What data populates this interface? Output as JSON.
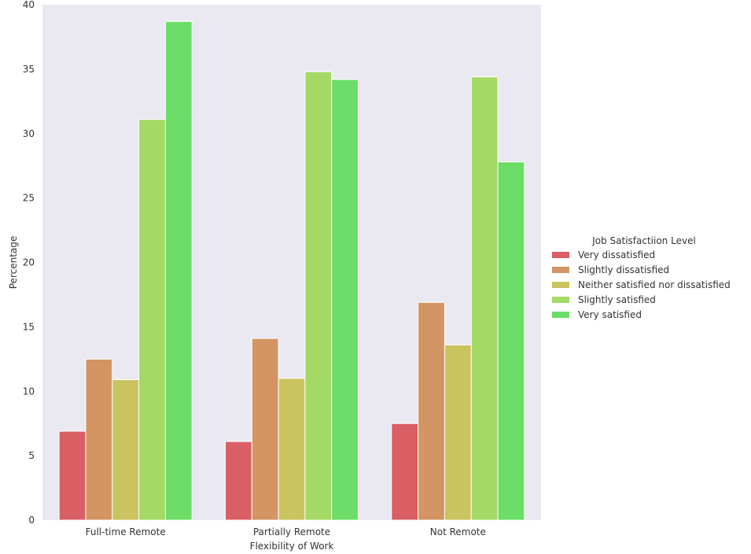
{
  "chart_data": {
    "type": "bar",
    "title": "",
    "xlabel": "Flexibility of Work",
    "ylabel": "Percentage",
    "ylim": [
      0,
      40
    ],
    "yticks": [
      0,
      5,
      10,
      15,
      20,
      25,
      30,
      35,
      40
    ],
    "grid": false,
    "categories": [
      "Full-time Remote",
      "Partially Remote",
      "Not Remote"
    ],
    "legend": {
      "title": "Job Satisfactiion Level",
      "placement": "right"
    },
    "series": [
      {
        "name": "Very dissatisfied",
        "color": "#d95f65",
        "values": [
          6.9,
          6.1,
          7.5
        ]
      },
      {
        "name": "Slightly dissatisfied",
        "color": "#d29563",
        "values": [
          12.5,
          14.1,
          16.9
        ]
      },
      {
        "name": "Neither satisfied nor dissatisfied",
        "color": "#c9c45f",
        "values": [
          10.9,
          11.0,
          13.6
        ]
      },
      {
        "name": "Slightly satisfied",
        "color": "#a4d965",
        "values": [
          31.1,
          34.8,
          34.4
        ]
      },
      {
        "name": "Very satisfied",
        "color": "#6cdd66",
        "values": [
          38.7,
          34.2,
          27.8
        ]
      }
    ],
    "colors": {
      "plot_background": "#eae9f2",
      "text": "#333333"
    }
  }
}
